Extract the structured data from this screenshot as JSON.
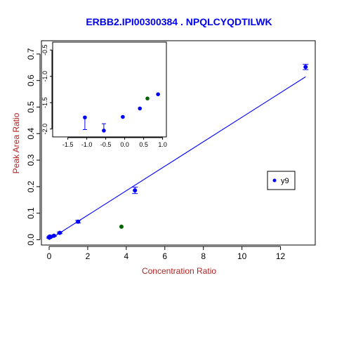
{
  "colors": {
    "title": "#0000ee",
    "axis_label": "#b22222",
    "series_point": "#0000ff",
    "regression_line": "#0000ff",
    "highlight_point": "#006400",
    "frame": "#000000"
  },
  "chart_data": [
    {
      "type": "scatter",
      "title": "ERBB2.IPI00300384 . NPQLCYQDTILWK",
      "xlabel": "Concentration Ratio",
      "ylabel": "Peak Area Ratio",
      "xlim": [
        -0.4,
        13.8
      ],
      "ylim": [
        -0.02,
        0.75
      ],
      "x_ticks": [
        0,
        2,
        4,
        6,
        8,
        10,
        12
      ],
      "x_tick_labels": [
        "0",
        "2",
        "4",
        "6",
        "8",
        "10",
        "12"
      ],
      "y_ticks": [
        0.0,
        0.1,
        0.2,
        0.3,
        0.4,
        0.5,
        0.6,
        0.7
      ],
      "y_tick_labels": [
        "0.0",
        "0.1",
        "0.2",
        "0.3",
        "0.4",
        "0.5",
        "0.6",
        "0.7"
      ],
      "grid": false,
      "legend": {
        "position": "right",
        "entries": [
          "y9"
        ]
      },
      "series": [
        {
          "name": "y9",
          "points": [
            {
              "x": 0.0,
              "y": 0.008,
              "err": 0.002
            },
            {
              "x": 0.03,
              "y": 0.012,
              "err": 0.002
            },
            {
              "x": 0.09,
              "y": 0.011,
              "err": 0.002
            },
            {
              "x": 0.25,
              "y": 0.015,
              "err": 0.002
            },
            {
              "x": 0.55,
              "y": 0.026,
              "err": 0.003
            },
            {
              "x": 1.5,
              "y": 0.068,
              "err": 0.005
            },
            {
              "x": 4.45,
              "y": 0.186,
              "err": 0.012
            },
            {
              "x": 13.3,
              "y": 0.651,
              "err": 0.01
            }
          ]
        },
        {
          "name": "",
          "highlight": true,
          "points": [
            {
              "x": 3.75,
              "y": 0.049
            }
          ]
        }
      ],
      "regression_line": {
        "x": [
          0.0,
          13.3
        ],
        "y": [
          0.0,
          0.614
        ]
      }
    },
    {
      "type": "scatter",
      "title": "",
      "xlabel": "",
      "ylabel": "",
      "xlim": [
        -1.9,
        1.1
      ],
      "ylim": [
        -2.15,
        -0.35
      ],
      "x_ticks": [
        -1.5,
        -1.0,
        -0.5,
        0.0,
        0.5,
        1.0
      ],
      "x_tick_labels": [
        "-1.5",
        "-1.0",
        "-0.5",
        "0.0",
        "0.5",
        "1.0"
      ],
      "y_ticks": [
        -2.0,
        -1.5,
        -1.0,
        -0.5
      ],
      "y_tick_labels": [
        "-2.0",
        "-1.5",
        "-1.0",
        "-0.5"
      ],
      "grid": false,
      "series": [
        {
          "name": "y9",
          "points": [
            {
              "x": -1.05,
              "y": -1.78,
              "err_low": 0.23,
              "err_high": 0.0
            },
            {
              "x": -0.55,
              "y": -2.03,
              "err_low": 0.0,
              "err_high": 0.13
            },
            {
              "x": -0.05,
              "y": -1.77,
              "err": 0.0
            },
            {
              "x": 0.4,
              "y": -1.61,
              "err": 0.0
            },
            {
              "x": 0.88,
              "y": -1.34,
              "err": 0.0
            }
          ]
        },
        {
          "name": "",
          "highlight": true,
          "points": [
            {
              "x": 0.6,
              "y": -1.42
            }
          ]
        }
      ]
    }
  ]
}
